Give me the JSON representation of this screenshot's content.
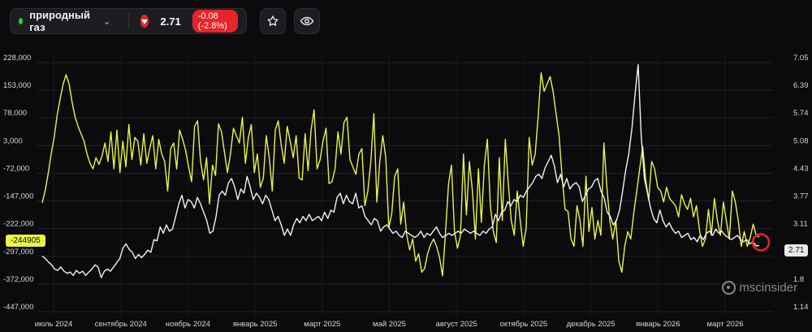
{
  "header": {
    "asset_name": "природный газ",
    "price": "2.71",
    "change": "-0.08 (-2.8%)",
    "favorite_icon": "star-icon",
    "view_icon": "eye-icon",
    "status_color": "#2ecc40",
    "down_color": "#e5252a"
  },
  "brand": {
    "text": "mscinsider"
  },
  "tags": {
    "left_value": "-244905",
    "right_value": "2.71"
  },
  "chart_data": {
    "type": "line",
    "title": "",
    "x_labels": [
      "июль 2024",
      "сентябрь 2024",
      "ноябрь 2024",
      "январь 2025",
      "март 2025",
      "май 2025",
      "август 2025",
      "октябрь 2025",
      "декабрь 2025",
      "январь 2026",
      "март 2026"
    ],
    "y_left_ticks": [
      "228,000",
      "153,000",
      "78,000",
      "3,000",
      "-72,000",
      "-147,000",
      "-222,000",
      "-297,000",
      "-372,000",
      "-447,000"
    ],
    "y_left_range": [
      -447000,
      228000
    ],
    "y_right_ticks": [
      "7.05",
      "6.39",
      "5.74",
      "5.08",
      "4.43",
      "3.77",
      "3.11",
      "2.46",
      "1.8",
      "1.14"
    ],
    "y_right_range": [
      1.14,
      7.05
    ],
    "grid": true,
    "series": [
      {
        "axis": "left",
        "color": "#e9f542",
        "values": [
          -152000,
          -118000,
          -72000,
          -20000,
          25000,
          85000,
          130000,
          170000,
          195000,
          170000,
          120000,
          80000,
          55000,
          35000,
          15000,
          -20000,
          -45000,
          -60000,
          -30000,
          -48000,
          -25000,
          10000,
          -40000,
          40000,
          -60000,
          45000,
          -70000,
          15000,
          -55000,
          60000,
          -35000,
          25000,
          15000,
          -50000,
          35000,
          -45000,
          -5000,
          30000,
          -60000,
          20000,
          -20000,
          -40000,
          -120000,
          -5000,
          10000,
          -60000,
          45000,
          20000,
          -10000,
          -55000,
          -95000,
          55000,
          70000,
          -40000,
          -90000,
          -30000,
          -155000,
          -50000,
          -78000,
          62000,
          40000,
          -15000,
          -70000,
          -20000,
          50000,
          30000,
          10000,
          80000,
          -45000,
          25000,
          60000,
          -70000,
          -20000,
          -110000,
          -85000,
          30000,
          -30000,
          -120000,
          45000,
          70000,
          5000,
          -45000,
          55000,
          15000,
          -30000,
          30000,
          -85000,
          -90000,
          35000,
          -65000,
          45000,
          100000,
          -60000,
          -35000,
          15000,
          50000,
          -100000,
          -95000,
          -60000,
          40000,
          -20000,
          65000,
          80000,
          -35000,
          -55000,
          -75000,
          -20000,
          -5000,
          -160000,
          -120000,
          -40000,
          90000,
          -150000,
          -40000,
          30000,
          -30000,
          -220000,
          -180000,
          -80000,
          -60000,
          -210000,
          -150000,
          -240000,
          -280000,
          -250000,
          -310000,
          -290000,
          -340000,
          -330000,
          -290000,
          -265000,
          -250000,
          -270000,
          -300000,
          -350000,
          -230000,
          -100000,
          -50000,
          -230000,
          -275000,
          -240000,
          -20000,
          -185000,
          -40000,
          -120000,
          -250000,
          -60000,
          -205000,
          -50000,
          20000,
          -160000,
          -230000,
          -260000,
          -30000,
          -200000,
          20000,
          -100000,
          -200000,
          -240000,
          -120000,
          -200000,
          -270000,
          -220000,
          25000,
          -50000,
          -20000,
          80000,
          200000,
          150000,
          170000,
          190000,
          150000,
          90000,
          30000,
          -80000,
          -170000,
          -175000,
          -250000,
          -270000,
          -160000,
          -200000,
          -270000,
          -80000,
          -230000,
          -165000,
          -250000,
          -200000,
          -240000,
          10000,
          -110000,
          -200000,
          -250000,
          -200000,
          -310000,
          -340000,
          -270000,
          -230000,
          -250000,
          -180000,
          -120000,
          -60000,
          0,
          -90000,
          -145000,
          -40000,
          -60000,
          -110000,
          -120000,
          -150000,
          -110000,
          -140000,
          -150000,
          -160000,
          -190000,
          -130000,
          -155000,
          -170000,
          -140000,
          -190000,
          -160000,
          -225000,
          -270000,
          -250000,
          -170000,
          -240000,
          -140000,
          -200000,
          -240000,
          -150000,
          -200000,
          -250000,
          -120000,
          -150000,
          -200000,
          -270000,
          -230000,
          -270000,
          -245000,
          -210000,
          -240000,
          -244905
        ]
      },
      {
        "axis": "right",
        "color": "#f2f2f2",
        "values": [
          2.46,
          2.4,
          2.32,
          2.25,
          2.15,
          2.12,
          2.2,
          2.1,
          2.05,
          2.08,
          2.0,
          2.12,
          2.05,
          2.1,
          2.0,
          2.08,
          2.15,
          2.25,
          2.2,
          1.95,
          2.1,
          2.15,
          2.1,
          2.2,
          2.3,
          2.4,
          2.65,
          2.75,
          2.62,
          2.55,
          2.4,
          2.5,
          2.42,
          2.5,
          2.6,
          2.55,
          2.85,
          2.82,
          3.15,
          3.0,
          3.2,
          3.05,
          3.1,
          3.4,
          3.7,
          3.9,
          3.6,
          3.8,
          3.75,
          3.6,
          3.85,
          3.7,
          3.5,
          3.3,
          3.0,
          3.05,
          3.4,
          3.9,
          4.0,
          3.9,
          4.2,
          4.3,
          4.1,
          3.8,
          4.05,
          3.95,
          4.35,
          4.1,
          3.8,
          3.95,
          3.85,
          3.7,
          3.9,
          3.8,
          3.55,
          3.3,
          3.4,
          3.2,
          2.95,
          3.1,
          2.95,
          3.2,
          3.35,
          3.25,
          3.4,
          3.3,
          3.45,
          3.3,
          3.35,
          3.4,
          3.3,
          3.5,
          3.35,
          3.55,
          3.5,
          3.85,
          3.95,
          3.7,
          3.9,
          3.75,
          3.7,
          3.95,
          3.6,
          3.65,
          3.4,
          3.3,
          3.2,
          3.35,
          3.3,
          3.05,
          3.15,
          3.2,
          3.1,
          3.0,
          3.05,
          2.95,
          2.9,
          3.05,
          3.0,
          2.95,
          2.9,
          2.95,
          3.05,
          2.9,
          3.0,
          2.95,
          3.05,
          3.15,
          3.0,
          2.9,
          2.95,
          3.0,
          2.95,
          3.0,
          3.05,
          3.0,
          3.1,
          3.05,
          3.0,
          3.05,
          3.0,
          2.95,
          3.05,
          3.0,
          3.1,
          3.15,
          3.45,
          3.3,
          3.5,
          3.55,
          3.75,
          3.65,
          3.8,
          3.75,
          3.9,
          3.85,
          4.0,
          4.1,
          4.2,
          4.35,
          4.4,
          4.3,
          4.55,
          4.7,
          4.85,
          4.6,
          4.2,
          4.4,
          4.1,
          4.3,
          4.05,
          4.15,
          4.2,
          4.1,
          3.75,
          3.9,
          4.05,
          4.1,
          4.25,
          4.3,
          4.0,
          3.85,
          3.5,
          3.4,
          3.2,
          3.3,
          3.55,
          4.0,
          4.5,
          4.9,
          5.5,
          6.3,
          7.0,
          5.3,
          4.3,
          3.95,
          3.6,
          3.35,
          3.25,
          3.55,
          3.3,
          3.15,
          3.25,
          3.1,
          3.0,
          3.05,
          2.9,
          2.95,
          3.0,
          2.85,
          2.9,
          2.8,
          2.95,
          2.85,
          3.0,
          3.05,
          2.95,
          3.1,
          3.0,
          3.05,
          2.95,
          2.9,
          2.85,
          2.9,
          2.95,
          2.85,
          2.8,
          2.85,
          2.75,
          2.8,
          2.7,
          2.71
        ]
      }
    ]
  }
}
